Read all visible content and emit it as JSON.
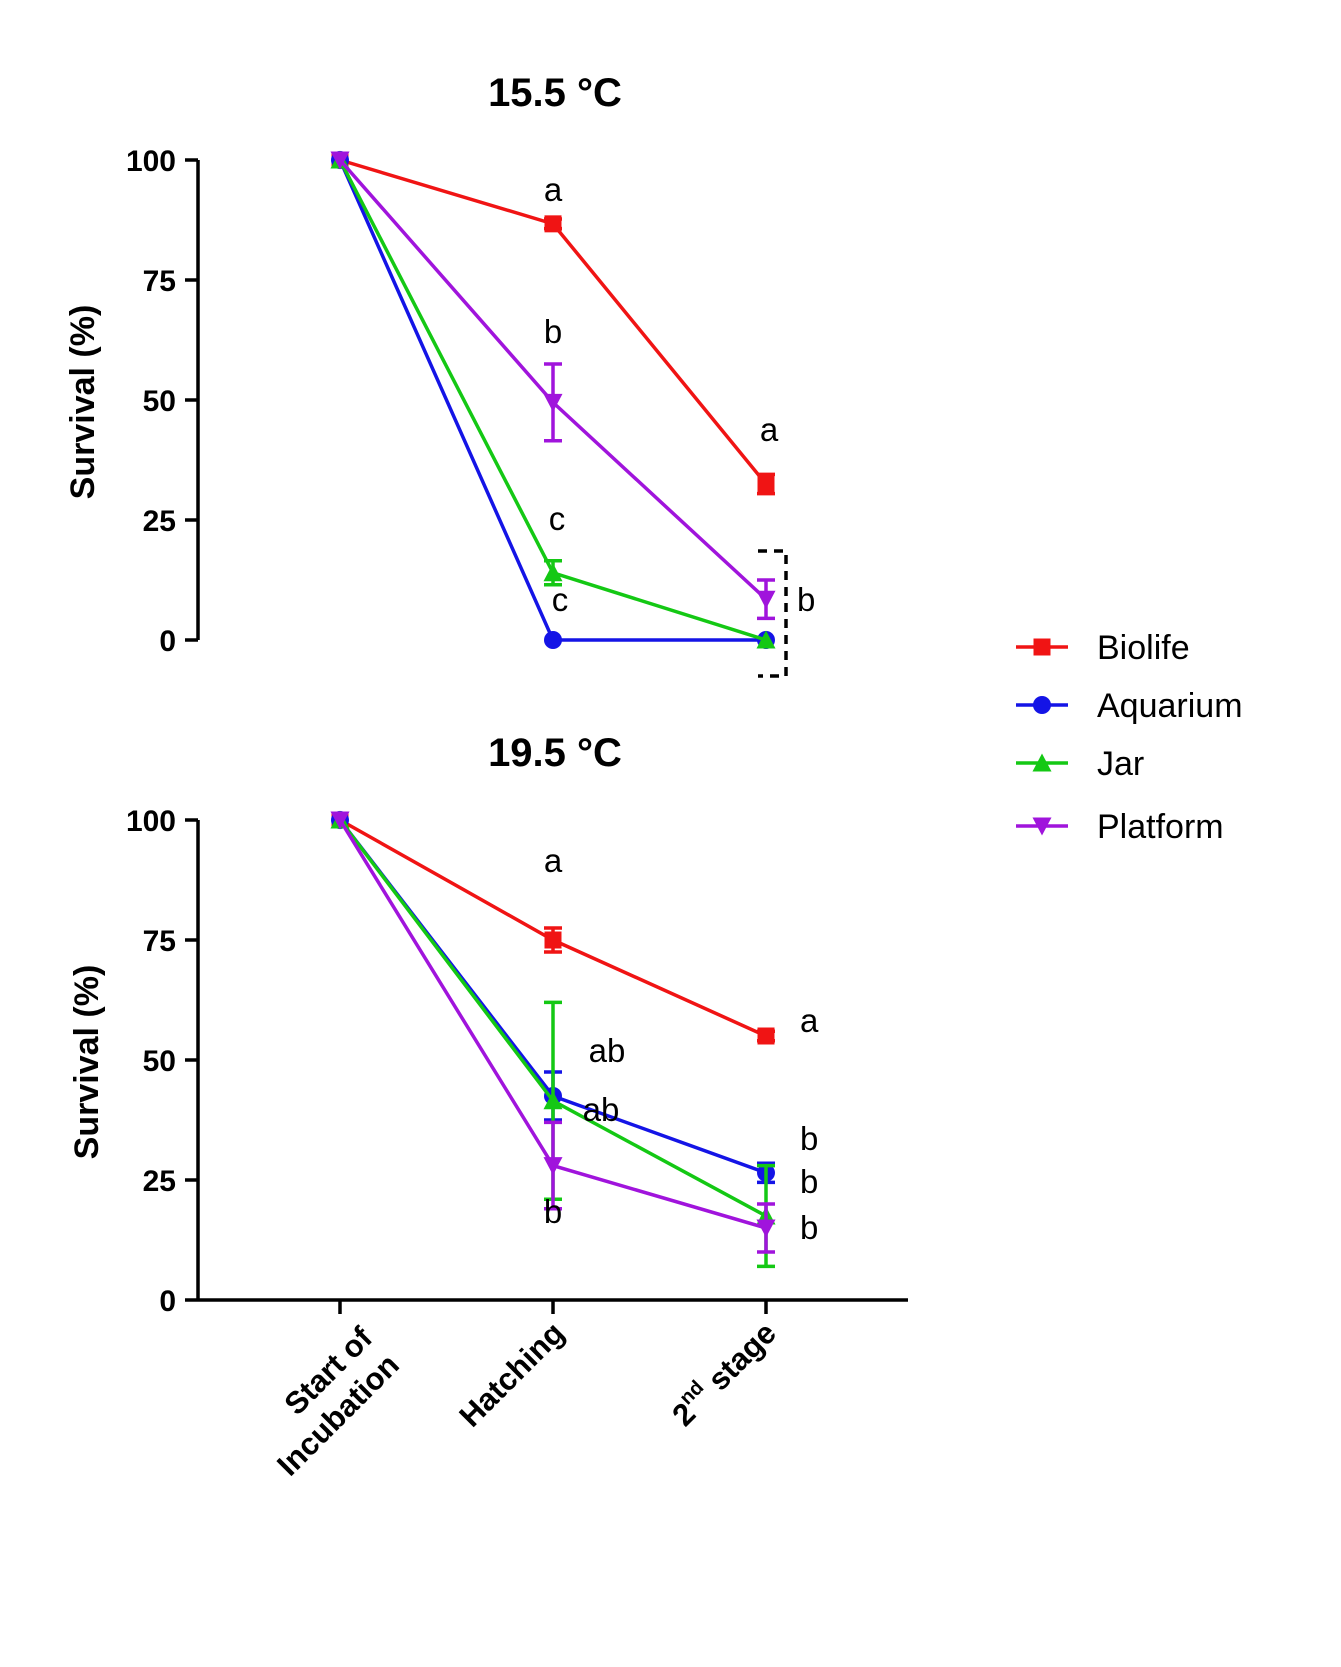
{
  "chart_data": [
    {
      "type": "line",
      "title": "15.5 °C",
      "ylabel": "Survival (%)",
      "xlabel": "",
      "ylim": [
        0,
        100
      ],
      "yticks": [
        "0",
        "25",
        "50",
        "75",
        "100"
      ],
      "categories": [
        "Start of Incubation",
        "Hatching",
        "2nd stage"
      ],
      "series": [
        {
          "name": "Biolife",
          "values": [
            100,
            86.7,
            32.5
          ],
          "errors": [
            0,
            1,
            2
          ]
        },
        {
          "name": "Aquarium",
          "values": [
            100,
            0,
            0
          ],
          "errors": [
            0,
            0,
            0
          ]
        },
        {
          "name": "Jar",
          "values": [
            100,
            14,
            0
          ],
          "errors": [
            0,
            2.5,
            0
          ]
        },
        {
          "name": "Platform",
          "values": [
            100,
            49.5,
            8.5
          ],
          "errors": [
            0,
            8,
            4
          ]
        }
      ],
      "annotations": [
        "a",
        "b",
        "c",
        "c",
        "a",
        "b"
      ]
    },
    {
      "type": "line",
      "title": "19.5 °C",
      "ylabel": "Survival (%)",
      "xlabel": "",
      "ylim": [
        0,
        100
      ],
      "yticks": [
        "0",
        "25",
        "50",
        "75",
        "100"
      ],
      "categories": [
        "Start of Incubation",
        "Hatching",
        "2nd stage"
      ],
      "series": [
        {
          "name": "Biolife",
          "values": [
            100,
            75,
            55
          ],
          "errors": [
            0,
            2.5,
            1
          ]
        },
        {
          "name": "Aquarium",
          "values": [
            100,
            42.5,
            26.5
          ],
          "errors": [
            0,
            5,
            2
          ]
        },
        {
          "name": "Jar",
          "values": [
            100,
            41.5,
            17.5
          ],
          "errors": [
            0,
            20.5,
            10.5
          ]
        },
        {
          "name": "Platform",
          "values": [
            100,
            28,
            15
          ],
          "errors": [
            0,
            9,
            5
          ]
        }
      ],
      "annotations": [
        "a",
        "ab",
        "ab",
        "b",
        "a",
        "b",
        "b",
        "b"
      ]
    }
  ],
  "x_tick_labels": {
    "start_line1": "Start of",
    "start_line2": "Incubation",
    "hatching": "Hatching",
    "stage_num": "2",
    "stage_sup": "nd",
    "stage_word": " stage"
  },
  "legend": [
    {
      "name": "Biolife",
      "color": "#f01414",
      "marker": "square"
    },
    {
      "name": "Aquarium",
      "color": "#1414e6",
      "marker": "circle"
    },
    {
      "name": "Jar",
      "color": "#14c814",
      "marker": "triangle-up"
    },
    {
      "name": "Platform",
      "color": "#a014dc",
      "marker": "triangle-down"
    }
  ]
}
